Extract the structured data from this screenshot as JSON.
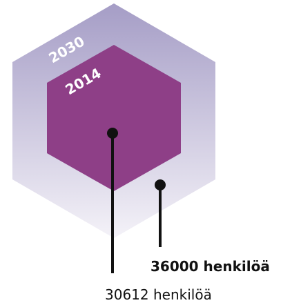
{
  "years": {
    "outer": "2030",
    "inner": "2014"
  },
  "callouts": {
    "outer": "36000 henkilöä",
    "inner": "30612 henkilöä"
  }
}
